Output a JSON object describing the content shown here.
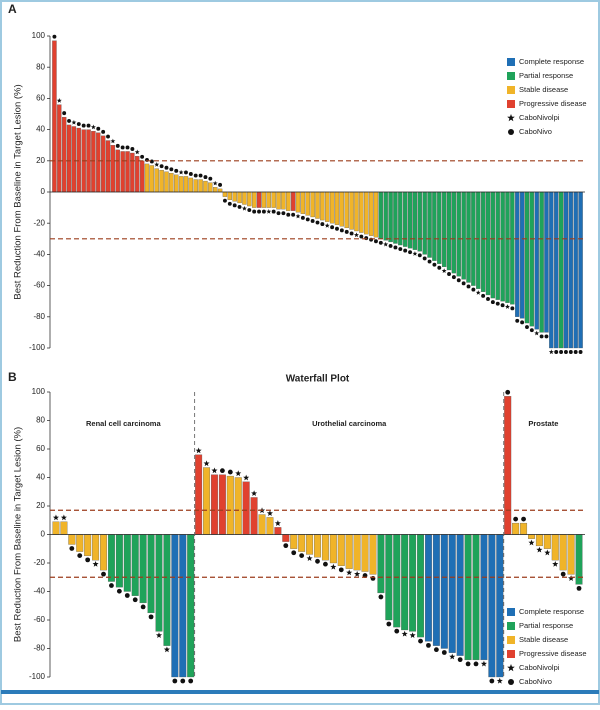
{
  "chart_data": [
    {
      "type": "waterfall",
      "panel": "A",
      "ylabel": "Best Reduction From Baseline in Target Lesion (%)",
      "ylim": [
        -100,
        100
      ],
      "yticks": [
        -100,
        -80,
        -60,
        -40,
        -20,
        0,
        20,
        40,
        60,
        80,
        100
      ],
      "reference_lines": [
        20,
        -30
      ],
      "legend": [
        {
          "name": "Complete response",
          "color": "#1f6fb5"
        },
        {
          "name": "Partial response",
          "color": "#1fa35a"
        },
        {
          "name": "Stable disease",
          "color": "#f0b429"
        },
        {
          "name": "Progressive disease",
          "color": "#e0412f"
        }
      ],
      "marker_legend": [
        {
          "name": "CaboNivolpi",
          "symbol": "star"
        },
        {
          "name": "CaboNivo",
          "symbol": "dot"
        }
      ],
      "values": [
        97,
        56,
        48,
        43,
        42,
        41,
        40,
        40,
        39,
        38,
        36,
        33,
        30,
        27,
        26,
        26,
        25,
        23,
        20,
        18,
        17,
        15,
        14,
        13,
        12,
        11,
        10,
        10,
        9,
        8,
        8,
        7,
        6,
        3,
        2,
        -3,
        -5,
        -6,
        -7,
        -8,
        -9,
        -10,
        -10,
        -10,
        -10,
        -10,
        -11,
        -11,
        -12,
        -12,
        -13,
        -14,
        -15,
        -16,
        -17,
        -18,
        -19,
        -20,
        -21,
        -22,
        -23,
        -24,
        -25,
        -26,
        -27,
        -28,
        -29,
        -30,
        -31,
        -32,
        -33,
        -34,
        -35,
        -36,
        -37,
        -38,
        -40,
        -42,
        -44,
        -46,
        -48,
        -50,
        -52,
        -54,
        -56,
        -58,
        -60,
        -62,
        -64,
        -66,
        -68,
        -69,
        -70,
        -71,
        -72,
        -80,
        -81,
        -84,
        -86,
        -88,
        -90,
        -90,
        -100,
        -100,
        -100,
        -100,
        -100,
        -100,
        -100
      ],
      "response": [
        3,
        3,
        3,
        3,
        3,
        3,
        3,
        3,
        3,
        3,
        3,
        3,
        3,
        3,
        3,
        3,
        3,
        3,
        3,
        2,
        2,
        2,
        2,
        2,
        2,
        2,
        2,
        2,
        2,
        2,
        2,
        2,
        2,
        2,
        2,
        2,
        2,
        2,
        2,
        2,
        2,
        2,
        3,
        2,
        2,
        2,
        2,
        2,
        2,
        3,
        2,
        2,
        2,
        2,
        2,
        2,
        2,
        2,
        2,
        2,
        2,
        2,
        2,
        2,
        2,
        2,
        2,
        1,
        1,
        1,
        1,
        1,
        1,
        1,
        1,
        1,
        1,
        1,
        1,
        1,
        1,
        1,
        1,
        1,
        1,
        1,
        1,
        1,
        1,
        1,
        1,
        1,
        1,
        1,
        1,
        0,
        0,
        1,
        1,
        0,
        1,
        0,
        0,
        0,
        1,
        0,
        0,
        0,
        0
      ],
      "regimen": [
        1,
        0,
        1,
        1,
        0,
        1,
        1,
        1,
        0,
        1,
        1,
        1,
        0,
        1,
        1,
        1,
        1,
        0,
        1,
        1,
        1,
        0,
        1,
        1,
        1,
        1,
        0,
        1,
        1,
        1,
        1,
        1,
        1,
        0,
        1,
        1,
        1,
        1,
        1,
        0,
        1,
        1,
        1,
        1,
        0,
        1,
        1,
        1,
        1,
        1,
        0,
        1,
        1,
        1,
        1,
        1,
        0,
        1,
        1,
        1,
        1,
        1,
        0,
        1,
        1,
        1,
        1,
        1,
        0,
        1,
        1,
        1,
        1,
        1,
        0,
        1,
        1,
        1,
        1,
        1,
        0,
        1,
        1,
        1,
        1,
        1,
        1,
        0,
        1,
        1,
        1,
        1,
        1,
        0,
        1,
        1,
        1,
        1,
        1,
        0,
        1,
        1,
        0,
        1,
        1,
        1,
        1,
        1,
        1
      ]
    },
    {
      "type": "grouped_waterfall",
      "panel": "B",
      "title": "Waterfall Plot",
      "ylabel": "Best Reduction From Baseline in Target Lesion (%)",
      "ylim": [
        -100,
        100
      ],
      "yticks": [
        -100,
        -80,
        -60,
        -40,
        -20,
        0,
        20,
        40,
        60,
        80,
        100
      ],
      "reference_lines": [
        17,
        -30
      ],
      "legend": [
        {
          "name": "Complete response",
          "color": "#1f6fb5"
        },
        {
          "name": "Partial response",
          "color": "#1fa35a"
        },
        {
          "name": "Stable disease",
          "color": "#f0b429"
        },
        {
          "name": "Progressive disease",
          "color": "#e0412f"
        }
      ],
      "marker_legend": [
        {
          "name": "CaboNivolpi",
          "symbol": "star"
        },
        {
          "name": "CaboNivo",
          "symbol": "dot"
        }
      ],
      "groups": [
        {
          "name": "Renal cell carcinoma",
          "values": [
            9,
            9,
            -7,
            -12,
            -15,
            -18,
            -25,
            -33,
            -37,
            -40,
            -43,
            -48,
            -55,
            -68,
            -78,
            -100,
            -100,
            -100
          ],
          "response": [
            2,
            2,
            2,
            2,
            2,
            2,
            2,
            1,
            1,
            1,
            1,
            1,
            1,
            1,
            1,
            0,
            0,
            1
          ],
          "regimen": [
            0,
            0,
            1,
            1,
            1,
            0,
            1,
            1,
            1,
            1,
            1,
            1,
            1,
            0,
            0,
            1,
            1,
            1
          ]
        },
        {
          "name": "Urothelial carcinoma",
          "values": [
            56,
            47,
            42,
            42,
            41,
            40,
            37,
            26,
            14,
            12,
            5,
            -5,
            -10,
            -12,
            -14,
            -16,
            -18,
            -20,
            -22,
            -24,
            -25,
            -26,
            -28,
            -41,
            -60,
            -65,
            -67,
            -68,
            -72,
            -75,
            -78,
            -80,
            -83,
            -85,
            -88,
            -88,
            -88,
            -100,
            -100
          ],
          "response": [
            3,
            2,
            3,
            3,
            2,
            2,
            3,
            3,
            2,
            2,
            3,
            3,
            2,
            2,
            2,
            2,
            2,
            2,
            2,
            2,
            2,
            2,
            2,
            1,
            1,
            1,
            1,
            1,
            1,
            0,
            0,
            0,
            0,
            0,
            1,
            1,
            0,
            0,
            0
          ],
          "regimen": [
            0,
            0,
            0,
            1,
            1,
            0,
            0,
            0,
            0,
            0,
            0,
            1,
            1,
            1,
            0,
            1,
            1,
            0,
            1,
            0,
            0,
            1,
            1,
            1,
            1,
            1,
            0,
            0,
            1,
            1,
            1,
            1,
            0,
            1,
            1,
            1,
            0,
            1,
            0
          ]
        },
        {
          "name": "Prostate",
          "values": [
            97,
            8,
            8,
            -3,
            -8,
            -10,
            -18,
            -25,
            -28,
            -35
          ],
          "response": [
            3,
            2,
            2,
            2,
            2,
            2,
            2,
            2,
            2,
            1
          ],
          "regimen": [
            1,
            1,
            1,
            0,
            0,
            0,
            0,
            1,
            0,
            1
          ]
        }
      ]
    }
  ]
}
